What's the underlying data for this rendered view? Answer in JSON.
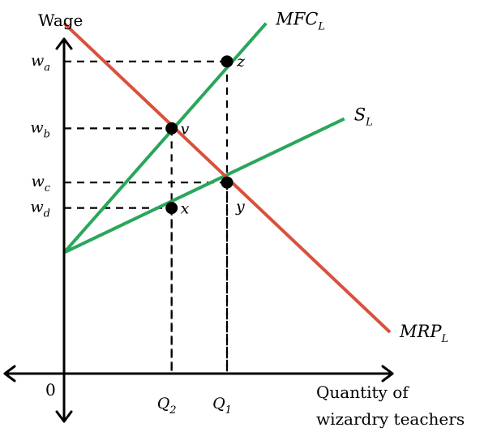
{
  "chart_data": {
    "type": "line",
    "ylabel": "Wage",
    "xlabel_lines": [
      "Quantity of",
      "wizardry teachers"
    ],
    "origin_label": "0",
    "xlim": [
      0,
      10
    ],
    "ylim": [
      0,
      10
    ],
    "colors": {
      "mrp": "#d9513c",
      "supply": "#2aa65a",
      "axes": "#000000"
    },
    "series": [
      {
        "name": "MFC",
        "sub": "L",
        "color": "#2aa65a",
        "points": [
          [
            0,
            3.8
          ],
          [
            6.2,
            11.0
          ]
        ]
      },
      {
        "name": "S",
        "sub": "L",
        "color": "#2aa65a",
        "points": [
          [
            0,
            3.8
          ],
          [
            8.6,
            8.0
          ]
        ]
      },
      {
        "name": "MRP",
        "sub": "L",
        "color": "#d9513c",
        "points": [
          [
            0,
            11.0
          ],
          [
            10.0,
            1.3
          ]
        ]
      }
    ],
    "y_ticks": [
      {
        "base": "w",
        "sub": "a",
        "value": 9.8
      },
      {
        "base": "w",
        "sub": "b",
        "value": 7.7
      },
      {
        "base": "w",
        "sub": "c",
        "value": 6.0
      },
      {
        "base": "w",
        "sub": "d",
        "value": 5.2
      }
    ],
    "x_ticks": [
      {
        "base": "Q",
        "sub": "2",
        "value": 3.3
      },
      {
        "base": "Q",
        "sub": "1",
        "value": 5.0
      }
    ],
    "points": [
      {
        "label": "z",
        "x": 5.0,
        "y": 9.8
      },
      {
        "label": "v",
        "x": 3.3,
        "y": 7.7
      },
      {
        "label": "y",
        "x": 5.0,
        "y": 6.0
      },
      {
        "label": "x",
        "x": 3.3,
        "y": 5.2
      }
    ]
  }
}
